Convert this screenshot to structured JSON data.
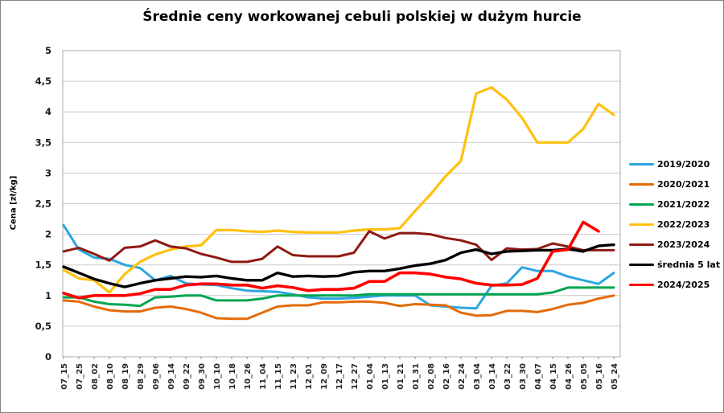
{
  "title": "Średnie ceny workowanej cebuli polskiej w dużym hurcie",
  "y_axis_title": "Cena [zł/kg]",
  "chart_data": {
    "type": "line",
    "title": "Średnie ceny workowanej cebuli polskiej w dużym hurcie",
    "xlabel": "",
    "ylabel": "Cena [zł/kg]",
    "ylim": [
      0,
      5
    ],
    "y_tick_step": 0.5,
    "y_tick_labels": [
      "0",
      "0,5",
      "1",
      "1,5",
      "2",
      "2,5",
      "3",
      "3,5",
      "4",
      "4,5",
      "5"
    ],
    "grid": true,
    "legend_position": "right",
    "categories": [
      "07_15",
      "07_25",
      "08_02",
      "08_10",
      "08_19",
      "08_29",
      "09_06",
      "09_14",
      "09_22",
      "09_30",
      "10_10",
      "10_18",
      "10_26",
      "11_04",
      "11_15",
      "11_23",
      "12_01",
      "12_09",
      "12_17",
      "12_27",
      "01_04",
      "01_13",
      "01_21",
      "01_31",
      "02_08",
      "02_16",
      "02_24",
      "03_04",
      "03_14",
      "03_22",
      "03_30",
      "04_07",
      "04_15",
      "04_26",
      "05_05",
      "05_16",
      "05_24"
    ],
    "series": [
      {
        "name": "2019/2020",
        "color": "#2BA6DE",
        "values": [
          2.15,
          1.75,
          1.62,
          1.6,
          1.5,
          1.45,
          1.25,
          1.32,
          1.2,
          1.18,
          1.17,
          1.12,
          1.08,
          1.07,
          1.06,
          1.02,
          0.97,
          0.95,
          0.95,
          0.96,
          0.98,
          1.0,
          1.0,
          1.0,
          0.84,
          0.82,
          0.8,
          0.79,
          1.16,
          1.2,
          1.46,
          1.4,
          1.4,
          1.31,
          1.25,
          1.19,
          1.37
        ]
      },
      {
        "name": "2020/2021",
        "color": "#E36C0A",
        "values": [
          0.92,
          0.9,
          0.82,
          0.76,
          0.74,
          0.74,
          0.8,
          0.82,
          0.78,
          0.72,
          0.63,
          0.62,
          0.62,
          0.72,
          0.82,
          0.84,
          0.84,
          0.89,
          0.89,
          0.9,
          0.9,
          0.88,
          0.83,
          0.86,
          0.85,
          0.84,
          0.72,
          0.67,
          0.68,
          0.75,
          0.75,
          0.73,
          0.78,
          0.85,
          0.88,
          0.95,
          1.0
        ]
      },
      {
        "name": "2021/2022",
        "color": "#00A550",
        "values": [
          0.97,
          0.97,
          0.9,
          0.86,
          0.85,
          0.83,
          0.97,
          0.98,
          1.0,
          1.0,
          0.92,
          0.92,
          0.92,
          0.95,
          1.0,
          1.0,
          1.0,
          1.0,
          1.0,
          1.0,
          1.02,
          1.02,
          1.02,
          1.02,
          1.02,
          1.02,
          1.02,
          1.02,
          1.02,
          1.02,
          1.02,
          1.02,
          1.05,
          1.13,
          1.13,
          1.13,
          1.13
        ]
      },
      {
        "name": "2022/2023",
        "color": "#FFC010",
        "values": [
          1.42,
          1.28,
          1.25,
          1.05,
          1.35,
          1.55,
          1.67,
          1.75,
          1.8,
          1.82,
          2.07,
          2.07,
          2.05,
          2.04,
          2.06,
          2.04,
          2.03,
          2.03,
          2.03,
          2.06,
          2.08,
          2.08,
          2.1,
          2.38,
          2.65,
          2.95,
          3.2,
          4.3,
          4.4,
          4.2,
          3.9,
          3.5,
          3.5,
          3.5,
          3.72,
          4.13,
          3.95
        ]
      },
      {
        "name": "2023/2024",
        "color": "#8E1B12",
        "values": [
          1.72,
          1.78,
          1.68,
          1.57,
          1.78,
          1.8,
          1.9,
          1.8,
          1.77,
          1.68,
          1.62,
          1.55,
          1.55,
          1.6,
          1.8,
          1.66,
          1.64,
          1.64,
          1.64,
          1.7,
          2.05,
          1.93,
          2.02,
          2.02,
          2.0,
          1.94,
          1.9,
          1.83,
          1.58,
          1.77,
          1.75,
          1.76,
          1.85,
          1.8,
          1.74,
          1.74,
          1.74
        ]
      },
      {
        "name": "średnia 5 lat",
        "color": "#000000",
        "values": [
          1.47,
          1.37,
          1.27,
          1.2,
          1.14,
          1.2,
          1.25,
          1.28,
          1.31,
          1.3,
          1.32,
          1.28,
          1.25,
          1.25,
          1.37,
          1.31,
          1.32,
          1.31,
          1.32,
          1.38,
          1.4,
          1.4,
          1.44,
          1.49,
          1.52,
          1.58,
          1.7,
          1.75,
          1.68,
          1.72,
          1.73,
          1.74,
          1.74,
          1.76,
          1.72,
          1.81,
          1.83
        ]
      },
      {
        "name": "2024/2025",
        "color": "#FF0000",
        "values": [
          1.04,
          0.96,
          1.0,
          1.0,
          1.0,
          1.03,
          1.1,
          1.1,
          1.17,
          1.19,
          1.19,
          1.17,
          1.17,
          1.12,
          1.16,
          1.13,
          1.08,
          1.1,
          1.1,
          1.12,
          1.23,
          1.23,
          1.37,
          1.37,
          1.35,
          1.3,
          1.27,
          1.2,
          1.17,
          1.17,
          1.18,
          1.28,
          1.72,
          1.75,
          2.2,
          2.05,
          null
        ]
      }
    ],
    "colors": {
      "gridline": "#C9C9C9",
      "plot_border": "#ABABAB",
      "tick": "#8C8C8C",
      "tick_label": "#262626"
    }
  }
}
